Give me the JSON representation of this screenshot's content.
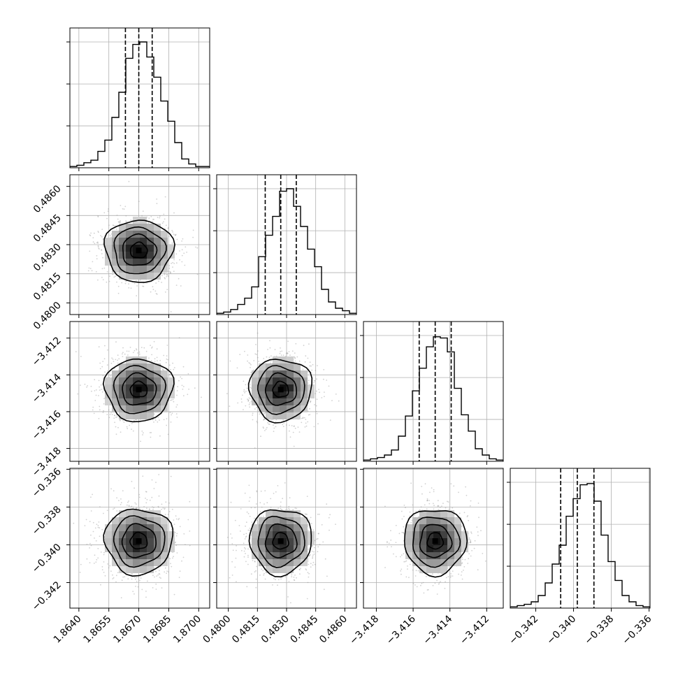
{
  "chart_data": {
    "type": "corner",
    "parameters": [
      {
        "ticks": [
          "1.8640",
          "1.8655",
          "1.8670",
          "1.8685",
          "1.8700"
        ],
        "tick_values": [
          1.864,
          1.8655,
          1.867,
          1.8685,
          1.87
        ],
        "range": [
          1.86355,
          1.87055
        ],
        "mean": 1.867,
        "sigma": 0.00085,
        "quantiles": [
          1.86633,
          1.867,
          1.86767
        ],
        "hist_counts": [
          0.01,
          0.02,
          0.04,
          0.06,
          0.13,
          0.22,
          0.4,
          0.6,
          0.87,
          0.98,
          1.0,
          0.88,
          0.72,
          0.53,
          0.37,
          0.2,
          0.07,
          0.03,
          0.01,
          0.01
        ]
      },
      {
        "ticks": [
          "0.4800",
          "0.4815",
          "0.4830",
          "0.4845",
          "0.4860"
        ],
        "tick_values": [
          0.48,
          0.4815,
          0.483,
          0.4845,
          0.486
        ],
        "range": [
          0.4794,
          0.4866
        ],
        "mean": 0.4827,
        "sigma": 0.0008,
        "quantiles": [
          0.4819,
          0.4827,
          0.4835
        ],
        "hist_counts": [
          0.01,
          0.02,
          0.04,
          0.08,
          0.13,
          0.22,
          0.46,
          0.63,
          0.78,
          0.98,
          1.0,
          0.86,
          0.7,
          0.52,
          0.38,
          0.2,
          0.1,
          0.05,
          0.03,
          0.01
        ]
      },
      {
        "ticks": [
          "−3.418",
          "−3.416",
          "−3.414",
          "−3.412"
        ],
        "tick_values": [
          -3.418,
          -3.416,
          -3.414,
          -3.412
        ],
        "range": [
          -3.4187,
          -3.4111
        ],
        "mean": -3.4148,
        "sigma": 0.00085,
        "quantiles": [
          -3.41567,
          -3.4148,
          -3.41393
        ],
        "hist_counts": [
          0.01,
          0.02,
          0.03,
          0.05,
          0.09,
          0.2,
          0.36,
          0.56,
          0.74,
          0.91,
          0.99,
          0.98,
          0.87,
          0.58,
          0.37,
          0.24,
          0.1,
          0.05,
          0.02,
          0.01
        ]
      },
      {
        "ticks": [
          "−0.342",
          "−0.340",
          "−0.338",
          "−0.336"
        ],
        "tick_values": [
          -0.342,
          -0.34,
          -0.338,
          -0.336
        ],
        "range": [
          -0.34335,
          -0.33595
        ],
        "mean": -0.3398,
        "sigma": 0.00087,
        "quantiles": [
          -0.34068,
          -0.3398,
          -0.33892
        ],
        "hist_counts": [
          0.01,
          0.02,
          0.03,
          0.05,
          0.1,
          0.2,
          0.35,
          0.5,
          0.73,
          0.87,
          0.98,
          0.99,
          0.85,
          0.58,
          0.37,
          0.22,
          0.1,
          0.05,
          0.02,
          0.01
        ]
      }
    ],
    "quantile_levels": [
      0.16,
      0.5,
      0.84
    ],
    "contour_levels_sigma": [
      0.5,
      1.0,
      1.5,
      2.0
    ],
    "grid": true
  }
}
